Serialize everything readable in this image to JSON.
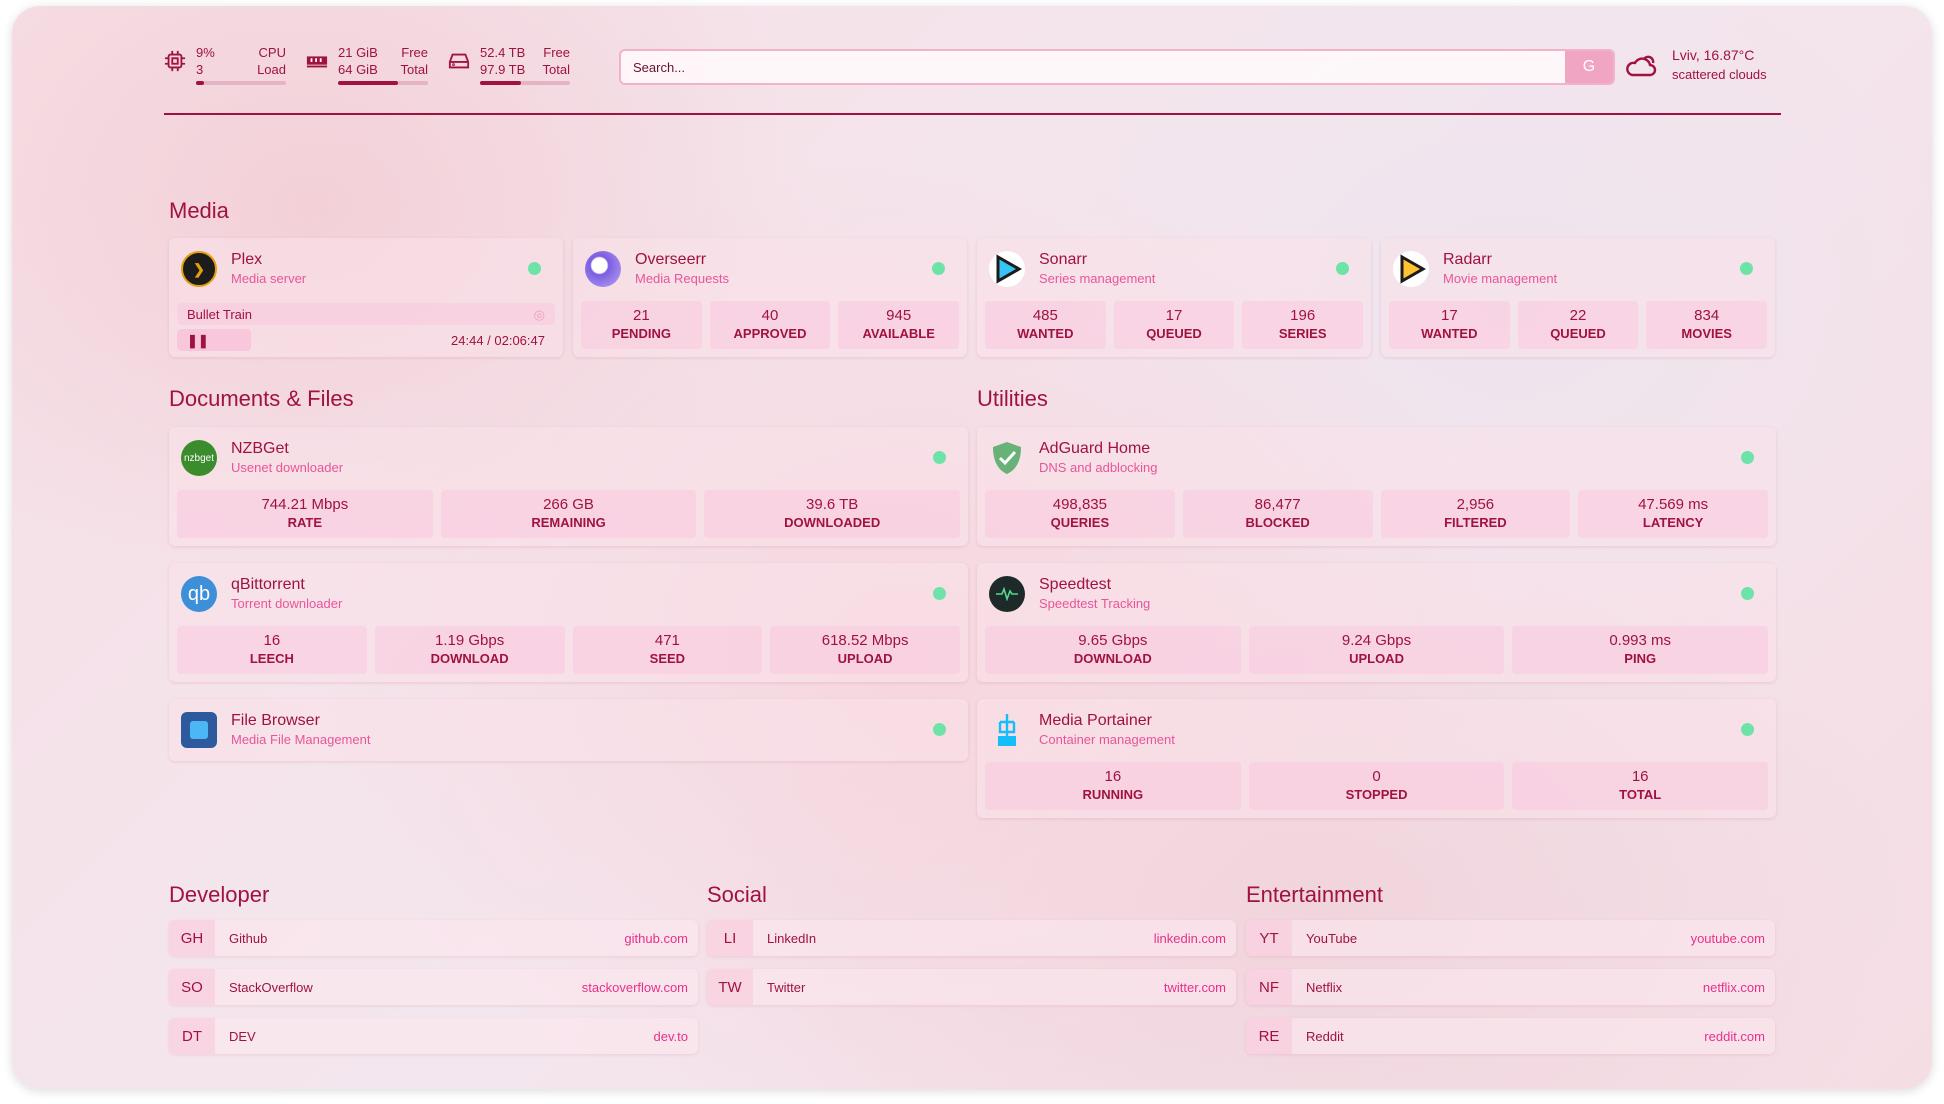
{
  "resources": {
    "cpu": {
      "icon": "cpu-icon",
      "value": "9%",
      "value_label": "CPU",
      "sub": "3",
      "sub_label": "Load",
      "percent": 9
    },
    "memory": {
      "icon": "memory-icon",
      "value": "21 GiB",
      "value_label": "Free",
      "sub": "64 GiB",
      "sub_label": "Total",
      "percent": 67
    },
    "disk": {
      "icon": "disk-icon",
      "value": "52.4 TB",
      "value_label": "Free",
      "sub": "97.9 TB",
      "sub_label": "Total",
      "percent": 46
    }
  },
  "search": {
    "placeholder": "Search...",
    "provider_label": "G"
  },
  "weather": {
    "icon": "cloud-sun-icon",
    "location_temp": "Lviv, 16.87°C",
    "condition": "scattered clouds"
  },
  "colors": {
    "accent": "#a0123f",
    "status_ok": "#6ee3a8",
    "link": "#e8308a"
  },
  "sections": {
    "media": "Media",
    "documents": "Documents & Files",
    "utilities": "Utilities",
    "developer": "Developer",
    "social": "Social",
    "entertainment": "Entertainment"
  },
  "plex": {
    "name": "Plex",
    "desc": "Media server",
    "now_playing": "Bullet Train",
    "time": "24:44 / 02:06:47",
    "progress_percent": 19.6
  },
  "overseerr": {
    "name": "Overseerr",
    "desc": "Media Requests",
    "stats": [
      {
        "v": "21",
        "l": "PENDING"
      },
      {
        "v": "40",
        "l": "APPROVED"
      },
      {
        "v": "945",
        "l": "AVAILABLE"
      }
    ]
  },
  "sonarr": {
    "name": "Sonarr",
    "desc": "Series management",
    "stats": [
      {
        "v": "485",
        "l": "WANTED"
      },
      {
        "v": "17",
        "l": "QUEUED"
      },
      {
        "v": "196",
        "l": "SERIES"
      }
    ]
  },
  "radarr": {
    "name": "Radarr",
    "desc": "Movie management",
    "stats": [
      {
        "v": "17",
        "l": "WANTED"
      },
      {
        "v": "22",
        "l": "QUEUED"
      },
      {
        "v": "834",
        "l": "MOVIES"
      }
    ]
  },
  "nzbget": {
    "name": "NZBGet",
    "desc": "Usenet downloader",
    "logo": "nzbget",
    "stats": [
      {
        "v": "744.21 Mbps",
        "l": "RATE"
      },
      {
        "v": "266 GB",
        "l": "REMAINING"
      },
      {
        "v": "39.6 TB",
        "l": "DOWNLOADED"
      }
    ]
  },
  "qbittorrent": {
    "name": "qBittorrent",
    "desc": "Torrent downloader",
    "logo": "qb",
    "stats": [
      {
        "v": "16",
        "l": "LEECH"
      },
      {
        "v": "1.19 Gbps",
        "l": "DOWNLOAD"
      },
      {
        "v": "471",
        "l": "SEED"
      },
      {
        "v": "618.52 Mbps",
        "l": "UPLOAD"
      }
    ]
  },
  "filebrowser": {
    "name": "File Browser",
    "desc": "Media File Management"
  },
  "adguard": {
    "name": "AdGuard Home",
    "desc": "DNS and adblocking",
    "stats": [
      {
        "v": "498,835",
        "l": "QUERIES"
      },
      {
        "v": "86,477",
        "l": "BLOCKED"
      },
      {
        "v": "2,956",
        "l": "FILTERED"
      },
      {
        "v": "47.569 ms",
        "l": "LATENCY"
      }
    ]
  },
  "speedtest": {
    "name": "Speedtest",
    "desc": "Speedtest Tracking",
    "stats": [
      {
        "v": "9.65 Gbps",
        "l": "DOWNLOAD"
      },
      {
        "v": "9.24 Gbps",
        "l": "UPLOAD"
      },
      {
        "v": "0.993 ms",
        "l": "PING"
      }
    ]
  },
  "portainer": {
    "name": "Media Portainer",
    "desc": "Container management",
    "stats": [
      {
        "v": "16",
        "l": "RUNNING"
      },
      {
        "v": "0",
        "l": "STOPPED"
      },
      {
        "v": "16",
        "l": "TOTAL"
      }
    ]
  },
  "bookmarks": {
    "developer": [
      {
        "abbr": "GH",
        "name": "Github",
        "url": "github.com"
      },
      {
        "abbr": "SO",
        "name": "StackOverflow",
        "url": "stackoverflow.com"
      },
      {
        "abbr": "DT",
        "name": "DEV",
        "url": "dev.to"
      }
    ],
    "social": [
      {
        "abbr": "LI",
        "name": "LinkedIn",
        "url": "linkedin.com"
      },
      {
        "abbr": "TW",
        "name": "Twitter",
        "url": "twitter.com"
      }
    ],
    "entertainment": [
      {
        "abbr": "YT",
        "name": "YouTube",
        "url": "youtube.com"
      },
      {
        "abbr": "NF",
        "name": "Netflix",
        "url": "netflix.com"
      },
      {
        "abbr": "RE",
        "name": "Reddit",
        "url": "reddit.com"
      }
    ]
  }
}
